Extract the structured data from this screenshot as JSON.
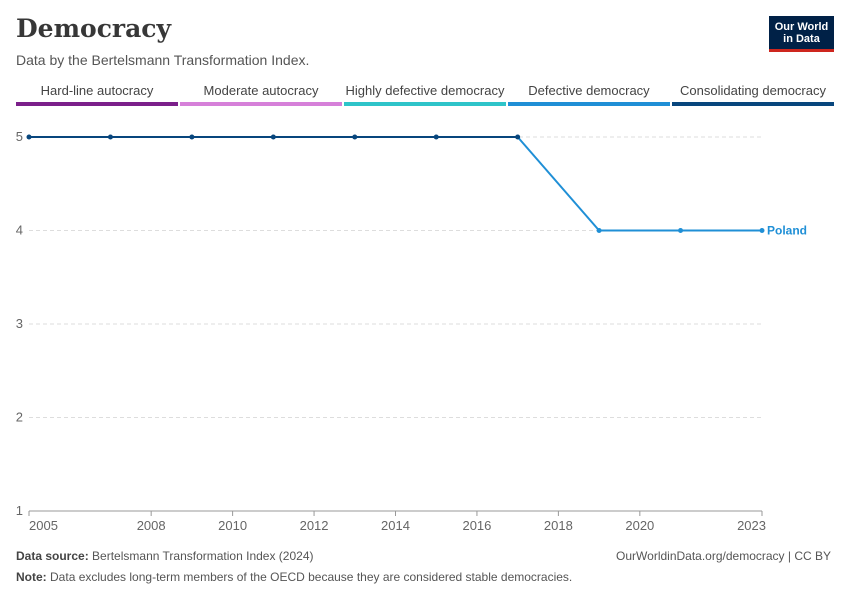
{
  "header": {
    "title": "Democracy",
    "subtitle": "Data by the Bertelsmann Transformation Index.",
    "logo_line1": "Our World",
    "logo_line2": "in Data"
  },
  "legend": [
    {
      "label": "Hard-line autocracy",
      "color": "#7b1f8a"
    },
    {
      "label": "Moderate autocracy",
      "color": "#d680d9"
    },
    {
      "label": "Highly defective democracy",
      "color": "#2ec4c9"
    },
    {
      "label": "Defective democracy",
      "color": "#1f8fd6"
    },
    {
      "label": "Consolidating democracy",
      "color": "#08467d"
    }
  ],
  "footer": {
    "source_label": "Data source:",
    "source_text": "Bertelsmann Transformation Index (2024)",
    "link": "OurWorldinData.org/democracy | CC BY",
    "note_label": "Note:",
    "note_text": "Data excludes long-term members of the OECD because they are considered stable democracies."
  },
  "chart_data": {
    "type": "line",
    "x_ticks": [
      2005,
      2008,
      2010,
      2012,
      2014,
      2016,
      2018,
      2020,
      2023
    ],
    "y_ticks": [
      1,
      2,
      3,
      4,
      5
    ],
    "xlim": [
      2005,
      2023
    ],
    "ylim": [
      1,
      5
    ],
    "grid": "horizontal dashed",
    "series": [
      {
        "name": "Poland",
        "x": [
          2005,
          2007,
          2009,
          2011,
          2013,
          2015,
          2017,
          2019,
          2021,
          2023
        ],
        "y": [
          5,
          5,
          5,
          5,
          5,
          5,
          5,
          4,
          4,
          4
        ],
        "colors": [
          "#08467d",
          "#08467d",
          "#08467d",
          "#08467d",
          "#08467d",
          "#08467d",
          "#08467d",
          "#1f8fd6",
          "#1f8fd6",
          "#1f8fd6"
        ]
      }
    ]
  }
}
